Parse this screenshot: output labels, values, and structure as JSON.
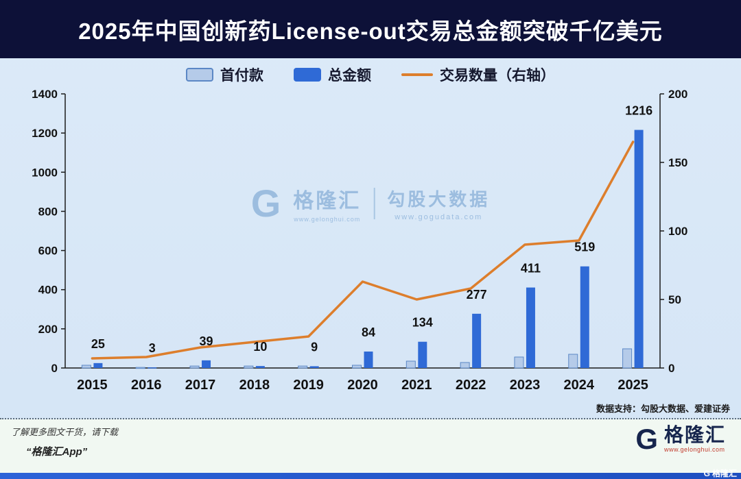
{
  "title": "2025年中国创新药License-out交易总金额突破千亿美元",
  "legend": [
    {
      "label": "首付款",
      "type": "bar",
      "color": "#b5cbe9",
      "border_color": "#5b87c5"
    },
    {
      "label": "总金额",
      "type": "bar",
      "color": "#2f6ad6"
    },
    {
      "label": "交易数量（右轴）",
      "type": "line",
      "color": "#dd7e2c"
    }
  ],
  "chart_data": {
    "type": "bar+line",
    "categories": [
      "2015",
      "2016",
      "2017",
      "2018",
      "2019",
      "2020",
      "2021",
      "2022",
      "2023",
      "2024",
      "2025"
    ],
    "series": [
      {
        "name": "首付款",
        "kind": "bar",
        "axis": "left",
        "color": "#b5cbe9",
        "border_color": "#5b87c5",
        "values": [
          14,
          3,
          10,
          10,
          10,
          14,
          35,
          28,
          56,
          70,
          98
        ],
        "values_estimated": true,
        "labels_shown": false
      },
      {
        "name": "总金额",
        "kind": "bar",
        "axis": "left",
        "color": "#2f6ad6",
        "values": [
          25,
          3,
          39,
          10,
          9,
          84,
          134,
          277,
          411,
          519,
          1216
        ],
        "labels_shown": true
      },
      {
        "name": "交易数量（右轴）",
        "kind": "line",
        "axis": "right",
        "color": "#dd7e2c",
        "values": [
          7,
          8,
          15,
          19,
          23,
          63,
          50,
          58,
          90,
          93,
          165
        ],
        "values_estimated": true,
        "labels_shown": false
      }
    ],
    "left_axis": {
      "min": 0,
      "max": 1400,
      "ticks": [
        0,
        200,
        400,
        600,
        800,
        1000,
        1200,
        1400
      ]
    },
    "right_axis": {
      "min": 0,
      "max": 200,
      "ticks": [
        0,
        50,
        100,
        150,
        200
      ]
    },
    "grid": false,
    "legend_position": "top"
  },
  "watermark": {
    "logo_letter": "G",
    "brand": "格隆汇",
    "brand_url": "www.gelonghui.com",
    "right_title": "勾股大数据",
    "right_url": "www.gogudata.com"
  },
  "data_support": "数据支持：勾股大数据、爱建证券",
  "footer": {
    "left_line1": "了解更多图文干货，请下载",
    "left_line2": "“格隆汇App”",
    "logo_letter": "G",
    "logo_brand": "格隆汇",
    "logo_url": "www.gelonghui.com",
    "corner_logo_letter": "G",
    "corner_logo_brand": "格隆汇"
  },
  "colors": {
    "page_bg": "#d8e7f7",
    "title_bar_bg": "#0d1138",
    "title_text": "#ffffff",
    "bar_upfront": "#b5cbe9",
    "bar_total": "#2f6ad6",
    "line_count": "#dd7e2c",
    "axis_text": "#111111",
    "footer_bg": "#f1f8f2",
    "bottom_strip": "#2c63d8"
  }
}
